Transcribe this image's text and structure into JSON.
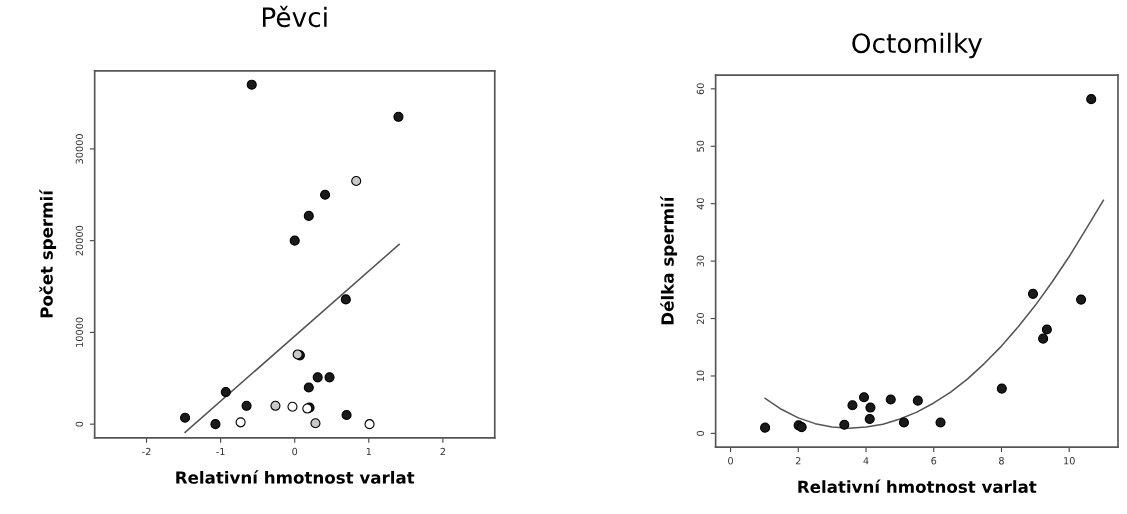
{
  "chart_data": [
    {
      "type": "scatter",
      "title": "Pěvci",
      "xlabel": "Relativní hmotnost varlat",
      "ylabel": "Počet spermií",
      "xlim": [
        -2.7,
        2.7
      ],
      "ylim": [
        -1500,
        38500
      ],
      "xticks": [
        -2,
        -1,
        0,
        1,
        2
      ],
      "yticks": [
        0,
        10000,
        20000,
        30000
      ],
      "grid": false,
      "legend": false,
      "marker": "circle",
      "series": [
        {
          "color": "#1a1a1a",
          "x": [
            -1.48,
            -0.58,
            1.4,
            0.41,
            0.19,
            0.0,
            0.69,
            0.07,
            -0.93,
            0.31,
            0.47,
            0.19,
            -0.65,
            -1.07,
            0.2,
            0.7
          ],
          "values": [
            700,
            37000,
            33500,
            25000,
            22700,
            20000,
            13600,
            7500,
            3500,
            5100,
            5100,
            4000,
            2000,
            0,
            1800,
            1000
          ]
        },
        {
          "color": "#c8c8c8",
          "x": [
            0.83,
            0.04,
            -0.26,
            0.28
          ],
          "values": [
            26500,
            7600,
            2000,
            100
          ]
        },
        {
          "color": "#ffffff",
          "x": [
            -0.73,
            -0.03,
            0.17,
            1.01
          ],
          "values": [
            200,
            1900,
            1700,
            0
          ]
        },
        {
          "type": "line",
          "marker": "none",
          "color": "#555555",
          "x": [
            -1.48,
            1.41
          ],
          "values": [
            -900,
            19600
          ]
        }
      ]
    },
    {
      "type": "scatter",
      "title": "Octomilky",
      "xlabel": "Relativní hmotnost varlat",
      "ylabel": "Délka spermií",
      "xlim": [
        -0.44,
        11.44
      ],
      "ylim": [
        -2.4,
        62.4
      ],
      "xticks": [
        0,
        2,
        4,
        6,
        8,
        10
      ],
      "yticks": [
        0,
        10,
        20,
        30,
        40,
        50,
        60
      ],
      "grid": false,
      "legend": false,
      "marker": "circle",
      "series": [
        {
          "color": "#1a1a1a",
          "x": [
            1.02,
            2.01,
            2.1,
            3.36,
            3.6,
            3.94,
            4.13,
            4.11,
            4.73,
            5.12,
            5.53,
            6.2,
            8.01,
            8.93,
            9.23,
            9.34,
            10.35,
            10.65
          ],
          "values": [
            1.0,
            1.4,
            1.1,
            1.5,
            4.9,
            6.3,
            4.5,
            2.5,
            5.9,
            1.9,
            5.7,
            1.9,
            7.8,
            24.3,
            16.5,
            18.1,
            23.3,
            58.2
          ]
        },
        {
          "type": "line",
          "marker": "none",
          "color": "#555555",
          "x": [
            1.02,
            1.5,
            2,
            2.5,
            3,
            3.5,
            4,
            4.5,
            5,
            5.5,
            6,
            6.5,
            7,
            7.5,
            8,
            8.5,
            9,
            9.5,
            10,
            10.5,
            11.01
          ],
          "values": [
            6.1,
            4.2,
            2.7,
            1.7,
            1.1,
            0.9,
            1.1,
            1.6,
            2.5,
            3.7,
            5.3,
            7.2,
            9.5,
            12.2,
            15.2,
            18.6,
            22.3,
            26.4,
            30.8,
            35.6,
            40.6
          ]
        }
      ]
    }
  ]
}
